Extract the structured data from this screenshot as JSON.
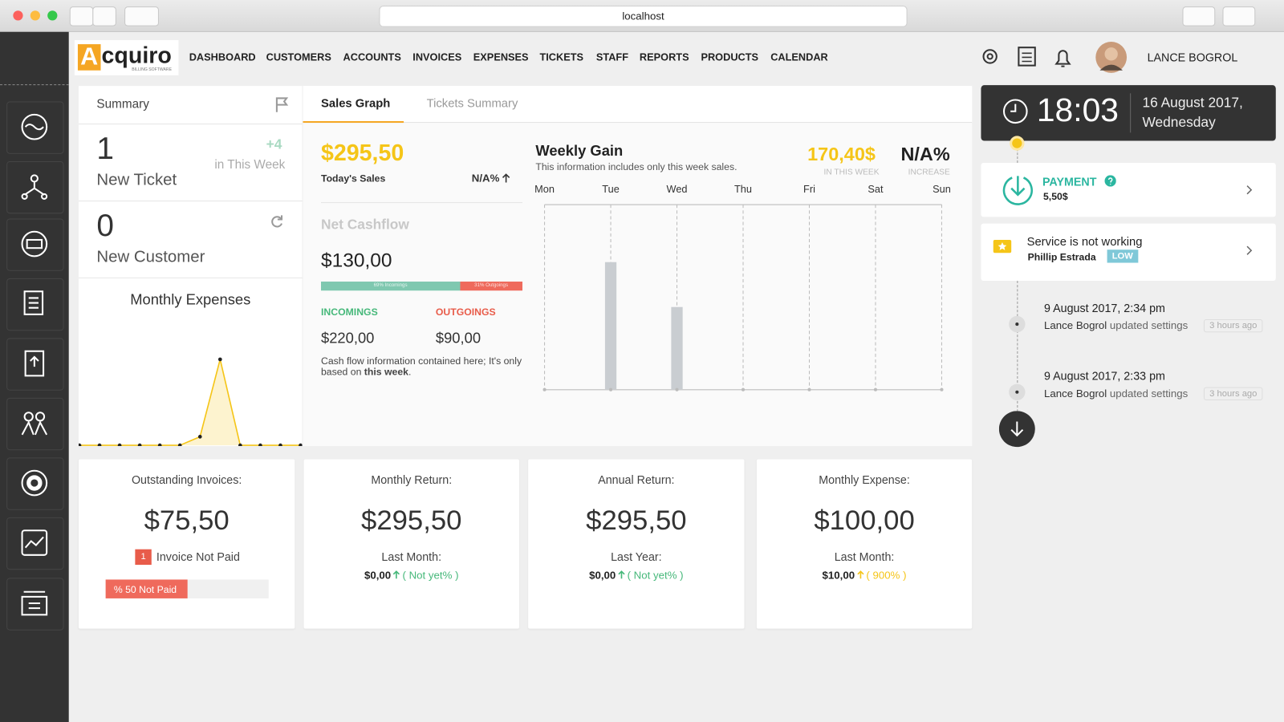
{
  "browser": {
    "url": "localhost"
  },
  "header": {
    "logo_initial": "A",
    "logo_name": "cquiro",
    "logo_tagline": "BILLING SOFTWARE",
    "nav": [
      "DASHBOARD",
      "CUSTOMERS",
      "ACCOUNTS",
      "INVOICES",
      "EXPENSES",
      "TICKETS",
      "STAFF",
      "REPORTS",
      "PRODUCTS",
      "CALENDAR"
    ],
    "user_name": "LANCE BOGROL"
  },
  "summary": {
    "title": "Summary",
    "ticket_count": 1,
    "ticket_label": "New Ticket",
    "ticket_delta": "+4",
    "ticket_period": "in This Week",
    "customer_count": 0,
    "customer_label": "New Customer"
  },
  "monthly_expenses": {
    "type": "line",
    "title": "Monthly Expenses",
    "values": [
      0,
      0,
      0,
      0,
      0,
      0,
      10,
      100,
      0,
      0,
      0,
      0
    ],
    "color": "#f5c518"
  },
  "tabs": [
    "Sales Graph",
    "Tickets Summary"
  ],
  "sales": {
    "today_value": "$295,50",
    "today_label": "Today's Sales",
    "today_change": "N/A%",
    "cashflow_title": "Net Cashflow",
    "cashflow_value": "$130,00",
    "cashflow_split": [
      {
        "value": 69,
        "label": "69% Incomings"
      },
      {
        "value": 31,
        "label": "31% Outgoings"
      }
    ],
    "incomings_label": "INCOMINGS",
    "incomings_value": "$220,00",
    "outgoings_label": "OUTGOINGS",
    "outgoings_value": "$90,00",
    "note": "Cash flow information contained here; It's only based on",
    "note_bold": "this week",
    "note_end": "."
  },
  "weekly_gain": {
    "type": "bar",
    "title": "Weekly Gain",
    "subtitle": "This information includes only this week sales.",
    "week_total": "170,40$",
    "week_total_label": "IN THIS WEEK",
    "increase": "N/A%",
    "increase_label": "INCREASE",
    "categories": [
      "Mon",
      "Tue",
      "Wed",
      "Thu",
      "Fri",
      "Sat",
      "Sun"
    ],
    "values": [
      0,
      103.4,
      67,
      0,
      0,
      0,
      0
    ],
    "ylim": [
      0,
      150
    ],
    "color": "#c9cdd1"
  },
  "clock": {
    "time": "18:03",
    "date": "16 August 2017,",
    "weekday": "Wednesday"
  },
  "payment": {
    "title": "PAYMENT",
    "amount": "5,50$"
  },
  "ticket": {
    "title": "Service is not working",
    "assignee": "Phillip Estrada",
    "priority": "LOW"
  },
  "timeline": [
    {
      "time": "9 August 2017, 2:34 pm",
      "user": "Lance Bogrol",
      "action": "updated settings",
      "ago": "3 hours ago"
    },
    {
      "time": "9 August 2017, 2:33 pm",
      "user": "Lance Bogrol",
      "action": "updated settings",
      "ago": "3 hours ago"
    }
  ],
  "cards": [
    {
      "title": "Outstanding Invoices:",
      "value": "$75,50",
      "badge": 1,
      "badge_label": "Invoice Not Paid",
      "progress": {
        "value": 50,
        "label": "% 50 Not Paid"
      }
    },
    {
      "title": "Monthly Return:",
      "value": "$295,50",
      "last_label": "Last Month:",
      "last_value": "$0,00",
      "change": "( Not yet% )"
    },
    {
      "title": "Annual Return:",
      "value": "$295,50",
      "last_label": "Last Year:",
      "last_value": "$0,00",
      "change": "( Not yet% )"
    },
    {
      "title": "Monthly Expense:",
      "value": "$100,00",
      "last_label": "Last Month:",
      "last_value": "$10,00",
      "change": "( 900% )"
    }
  ]
}
